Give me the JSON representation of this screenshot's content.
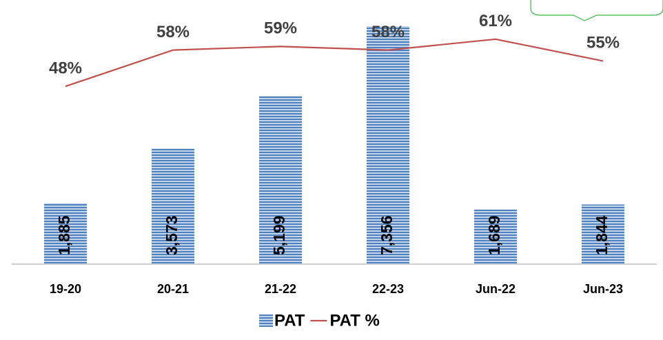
{
  "chart_data": {
    "type": "bar",
    "categories": [
      "19-20",
      "20-21",
      "21-22",
      "22-23",
      "Jun-22",
      "Jun-23"
    ],
    "ylim": [
      0,
      7740
    ],
    "y2lim": [
      -1,
      68
    ],
    "series": [
      {
        "name": "PAT",
        "type": "bar",
        "color": "#4f81bd",
        "values": [
          1885,
          3573,
          5199,
          7356,
          1689,
          1844
        ],
        "value_labels": [
          "1,885",
          "3,573",
          "5,199",
          "7,356",
          "1,689",
          "1,844"
        ]
      },
      {
        "name": "PAT %",
        "type": "line",
        "axis": "y2",
        "color": "#c0504d",
        "values": [
          48,
          58,
          59,
          58,
          61,
          55
        ],
        "value_labels": [
          "48%",
          "58%",
          "59%",
          "58%",
          "61%",
          "55%"
        ]
      }
    ],
    "legend": "bottom"
  }
}
